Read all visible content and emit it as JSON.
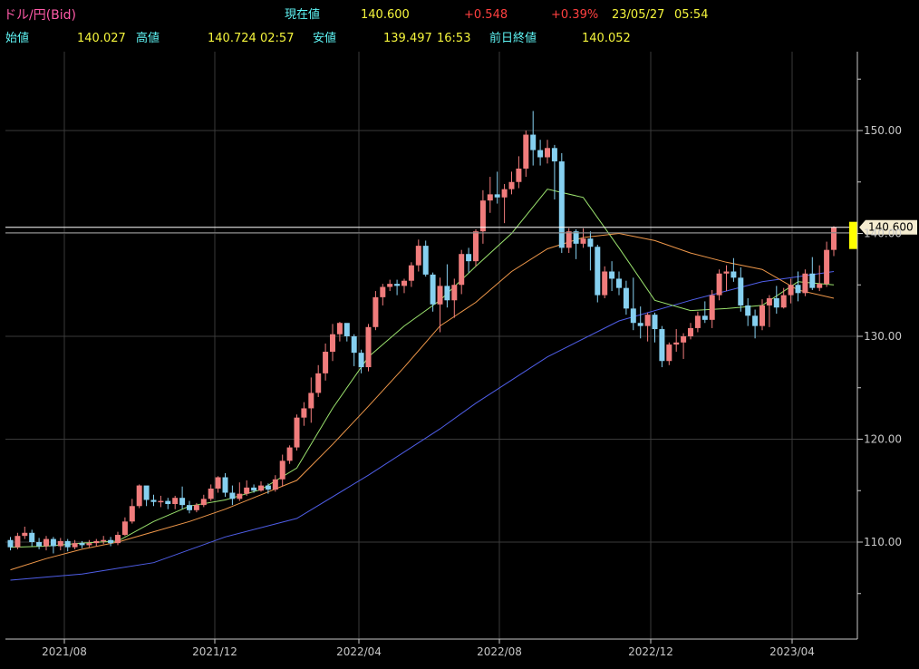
{
  "header": {
    "symbol": "ドル/円(Bid)",
    "current_label": "現在値",
    "current_value": "140.600",
    "change": "+0.548",
    "change_pct": "+0.39%",
    "date": "23/05/27",
    "time": "05:54",
    "open_label": "始値",
    "open_value": "140.027",
    "high_label": "高値",
    "high_value": "140.724",
    "high_time": "02:57",
    "low_label": "安値",
    "low_value": "139.497",
    "low_time": "16:53",
    "prev_close_label": "前日終値",
    "prev_close_value": "140.052"
  },
  "colors": {
    "background": "#000000",
    "grid": "#3a3a3a",
    "up_candle": "#f07c7c",
    "down_candle": "#86d0f0",
    "ma_short": "#9be36e",
    "ma_mid": "#f0984a",
    "ma_long": "#4f5ee8",
    "price_line": "#ffffff",
    "price_tag": "#f5ecd0",
    "label_cyan": "#5ff5f5",
    "label_yellow": "#f5f53c",
    "label_pink": "#ff5aa8",
    "label_red": "#ff4040",
    "axis_text": "#c8c8c8"
  },
  "chart_data": {
    "type": "candlestick",
    "price_tag": "140.600",
    "current_price": 140.6,
    "y_ticks": [
      150,
      140,
      130,
      120,
      110
    ],
    "y_tick_labels": [
      "150.00",
      "140.00",
      "130.00",
      "120.00",
      "110.00"
    ],
    "ylim": [
      101.5,
      155.5
    ],
    "x_ticks": [
      "2021/08",
      "2021/12",
      "2022/04",
      "2022/08",
      "2022/12",
      "2023/04"
    ],
    "candles": [
      [
        110.2,
        109.5,
        110.5,
        109.2
      ],
      [
        109.5,
        110.6,
        110.9,
        109.3
      ],
      [
        110.6,
        110.9,
        111.5,
        110.3
      ],
      [
        110.9,
        110.0,
        111.2,
        109.6
      ],
      [
        110.0,
        109.6,
        110.4,
        109.3
      ],
      [
        109.6,
        110.3,
        110.6,
        109.2
      ],
      [
        110.3,
        109.6,
        110.5,
        108.9
      ],
      [
        109.6,
        110.1,
        110.4,
        109.2
      ],
      [
        110.1,
        109.5,
        110.3,
        109.1
      ],
      [
        109.5,
        109.9,
        110.2,
        109.3
      ],
      [
        109.9,
        109.7,
        110.1,
        109.4
      ],
      [
        109.7,
        109.9,
        110.2,
        109.5
      ],
      [
        109.9,
        110.1,
        110.3,
        109.6
      ],
      [
        110.1,
        110.2,
        110.6,
        109.8
      ],
      [
        110.2,
        109.9,
        110.5,
        109.6
      ],
      [
        109.9,
        110.7,
        111.0,
        109.7
      ],
      [
        110.7,
        112.0,
        112.4,
        110.6
      ],
      [
        112.0,
        113.5,
        114.2,
        111.8
      ],
      [
        113.5,
        115.5,
        115.6,
        113.3
      ],
      [
        115.5,
        114.1,
        114.9,
        113.5
      ],
      [
        114.1,
        113.9,
        114.6,
        113.5
      ],
      [
        113.9,
        114.0,
        114.5,
        113.4
      ],
      [
        114.0,
        113.7,
        114.3,
        113.2
      ],
      [
        113.7,
        114.3,
        114.5,
        113.2
      ],
      [
        114.3,
        113.6,
        115.4,
        113.2
      ],
      [
        113.6,
        113.1,
        114.0,
        112.8
      ],
      [
        113.1,
        113.6,
        113.8,
        112.9
      ],
      [
        113.6,
        114.2,
        114.6,
        113.4
      ],
      [
        114.2,
        115.2,
        115.6,
        114.0
      ],
      [
        115.2,
        116.3,
        116.4,
        114.8
      ],
      [
        116.3,
        114.8,
        116.7,
        114.4
      ],
      [
        114.8,
        114.2,
        115.5,
        113.6
      ],
      [
        114.2,
        114.7,
        115.8,
        114.0
      ],
      [
        114.7,
        115.3,
        116.0,
        114.5
      ],
      [
        115.3,
        115.0,
        115.6,
        114.8
      ],
      [
        115.0,
        115.5,
        115.9,
        114.9
      ],
      [
        115.5,
        115.1,
        115.7,
        114.7
      ],
      [
        115.1,
        116.1,
        116.5,
        114.9
      ],
      [
        116.1,
        117.9,
        118.5,
        115.4
      ],
      [
        117.9,
        119.2,
        119.4,
        117.6
      ],
      [
        119.2,
        122.1,
        122.4,
        118.9
      ],
      [
        122.1,
        123.0,
        123.6,
        121.3
      ],
      [
        123.0,
        124.5,
        126.0,
        121.6
      ],
      [
        124.5,
        126.4,
        127.2,
        124.1
      ],
      [
        126.4,
        128.5,
        129.3,
        125.7
      ],
      [
        128.5,
        130.2,
        131.2,
        127.6
      ],
      [
        130.2,
        131.3,
        131.4,
        129.5
      ],
      [
        131.3,
        130.0,
        131.1,
        129.5
      ],
      [
        130.0,
        128.4,
        130.2,
        127.1
      ],
      [
        128.4,
        127.0,
        128.7,
        126.4
      ],
      [
        127.0,
        130.9,
        131.2,
        126.6
      ],
      [
        130.9,
        133.8,
        134.4,
        130.6
      ],
      [
        133.8,
        134.8,
        135.1,
        133.0
      ],
      [
        134.8,
        135.1,
        135.5,
        134.4
      ],
      [
        135.1,
        134.9,
        135.5,
        134.0
      ],
      [
        134.9,
        135.4,
        135.6,
        134.2
      ],
      [
        135.4,
        136.9,
        137.2,
        134.8
      ],
      [
        136.9,
        138.8,
        139.4,
        136.3
      ],
      [
        138.8,
        136.0,
        139.3,
        135.8
      ],
      [
        136.0,
        133.1,
        136.2,
        132.4
      ],
      [
        133.1,
        134.9,
        135.7,
        130.4
      ],
      [
        134.9,
        133.5,
        137.0,
        132.8
      ],
      [
        133.5,
        135.0,
        135.6,
        131.8
      ],
      [
        135.0,
        138.0,
        138.4,
        134.1
      ],
      [
        138.0,
        137.3,
        138.6,
        136.2
      ],
      [
        137.3,
        140.2,
        140.4,
        136.8
      ],
      [
        140.2,
        143.2,
        144.2,
        139.0
      ],
      [
        143.2,
        143.8,
        145.5,
        142.0
      ],
      [
        143.8,
        143.5,
        146.0,
        142.9
      ],
      [
        143.5,
        144.3,
        144.8,
        141.0
      ],
      [
        144.3,
        145.0,
        146.0,
        143.8
      ],
      [
        145.0,
        146.3,
        147.5,
        144.4
      ],
      [
        146.3,
        149.6,
        150.0,
        145.5
      ],
      [
        149.6,
        148.1,
        151.9,
        146.6
      ],
      [
        148.1,
        147.4,
        149.1,
        146.6
      ],
      [
        147.4,
        148.3,
        149.1,
        146.8
      ],
      [
        148.3,
        147.0,
        148.6,
        143.3
      ],
      [
        147.0,
        138.6,
        147.8,
        138.1
      ],
      [
        138.6,
        140.2,
        140.5,
        138.1
      ],
      [
        140.2,
        139.0,
        140.4,
        137.5
      ],
      [
        139.0,
        139.5,
        140.5,
        138.6
      ],
      [
        139.5,
        138.7,
        140.2,
        136.4
      ],
      [
        138.7,
        134.0,
        138.9,
        133.3
      ],
      [
        134.0,
        136.3,
        136.8,
        133.7
      ],
      [
        136.3,
        135.6,
        137.3,
        134.4
      ],
      [
        135.6,
        134.7,
        136.3,
        134.0
      ],
      [
        134.7,
        132.7,
        135.4,
        132.1
      ],
      [
        132.7,
        131.3,
        135.7,
        130.6
      ],
      [
        131.3,
        131.0,
        132.9,
        129.8
      ],
      [
        131.0,
        132.1,
        132.3,
        129.5
      ],
      [
        132.1,
        130.7,
        132.3,
        129.4
      ],
      [
        130.7,
        127.6,
        131.0,
        127.0
      ],
      [
        127.6,
        129.2,
        129.4,
        127.2
      ],
      [
        129.2,
        129.4,
        130.7,
        128.5
      ],
      [
        129.4,
        130.0,
        130.3,
        127.8
      ],
      [
        130.0,
        130.8,
        131.3,
        129.7
      ],
      [
        130.8,
        132.0,
        132.4,
        130.4
      ],
      [
        132.0,
        131.6,
        133.4,
        131.3
      ],
      [
        131.6,
        134.0,
        134.5,
        130.8
      ],
      [
        134.0,
        136.1,
        136.5,
        133.5
      ],
      [
        136.1,
        136.3,
        136.9,
        134.4
      ],
      [
        136.3,
        135.7,
        137.6,
        135.3
      ],
      [
        135.7,
        133.0,
        136.7,
        132.4
      ],
      [
        133.0,
        132.0,
        133.7,
        131.0
      ],
      [
        132.0,
        131.0,
        132.6,
        129.8
      ],
      [
        131.0,
        133.0,
        133.6,
        130.6
      ],
      [
        133.0,
        133.7,
        134.0,
        130.9
      ],
      [
        133.7,
        132.8,
        134.9,
        132.2
      ],
      [
        132.8,
        134.0,
        134.7,
        132.7
      ],
      [
        134.0,
        135.0,
        135.6,
        133.2
      ],
      [
        135.0,
        134.2,
        136.3,
        133.4
      ],
      [
        134.2,
        136.1,
        136.5,
        133.9
      ],
      [
        136.1,
        134.7,
        137.7,
        134.5
      ],
      [
        134.7,
        135.1,
        136.9,
        134.4
      ],
      [
        135.1,
        138.4,
        139.2,
        134.8
      ],
      [
        138.4,
        140.6,
        140.7,
        137.8
      ]
    ],
    "ma_short": [
      [
        0,
        109.5
      ],
      [
        5,
        109.6
      ],
      [
        10,
        109.9
      ],
      [
        15,
        110.1
      ],
      [
        20,
        112.0
      ],
      [
        25,
        113.5
      ],
      [
        30,
        114.1
      ],
      [
        35,
        115.1
      ],
      [
        40,
        117.2
      ],
      [
        45,
        123.0
      ],
      [
        50,
        128.0
      ],
      [
        55,
        131.0
      ],
      [
        60,
        133.5
      ],
      [
        65,
        136.8
      ],
      [
        70,
        140.0
      ],
      [
        75,
        144.3
      ],
      [
        80,
        143.5
      ],
      [
        85,
        138.6
      ],
      [
        90,
        133.5
      ],
      [
        95,
        132.5
      ],
      [
        100,
        132.7
      ],
      [
        105,
        133.0
      ],
      [
        110,
        135.3
      ],
      [
        115,
        135.0
      ]
    ],
    "ma_mid": [
      [
        0,
        107.3
      ],
      [
        5,
        108.4
      ],
      [
        10,
        109.3
      ],
      [
        15,
        110.0
      ],
      [
        20,
        111.0
      ],
      [
        25,
        112.0
      ],
      [
        30,
        113.2
      ],
      [
        35,
        114.6
      ],
      [
        40,
        116.0
      ],
      [
        45,
        119.5
      ],
      [
        50,
        123.2
      ],
      [
        55,
        127.0
      ],
      [
        60,
        131.0
      ],
      [
        65,
        133.3
      ],
      [
        70,
        136.3
      ],
      [
        75,
        138.5
      ],
      [
        80,
        139.6
      ],
      [
        85,
        140.0
      ],
      [
        90,
        139.3
      ],
      [
        95,
        138.1
      ],
      [
        100,
        137.2
      ],
      [
        105,
        136.5
      ],
      [
        110,
        134.5
      ],
      [
        115,
        133.7
      ]
    ],
    "ma_long": [
      [
        0,
        106.3
      ],
      [
        10,
        106.9
      ],
      [
        20,
        108.0
      ],
      [
        30,
        110.5
      ],
      [
        40,
        112.3
      ],
      [
        50,
        116.5
      ],
      [
        60,
        121.0
      ],
      [
        65,
        123.5
      ],
      [
        75,
        128.0
      ],
      [
        85,
        131.5
      ],
      [
        95,
        133.5
      ],
      [
        105,
        135.3
      ],
      [
        110,
        135.8
      ],
      [
        115,
        136.3
      ]
    ]
  }
}
